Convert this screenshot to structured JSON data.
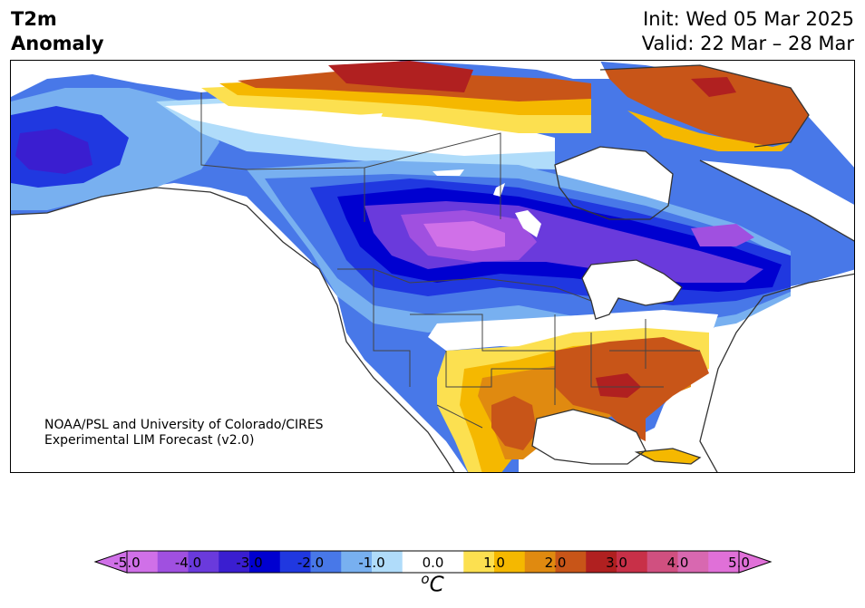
{
  "header": {
    "variable_line1": "T2m",
    "variable_line2": "Anomaly",
    "init": "Init: Wed 05 Mar 2025",
    "valid": "Valid: 22 Mar – 28 Mar"
  },
  "credit": {
    "line1": "NOAA/PSL and University of Colorado/CIRES",
    "line2": "Experimental LIM Forecast (v2.0)"
  },
  "colorbar": {
    "unit_super": "o",
    "unit": "C",
    "ticks": [
      "-5.0",
      "-4.0",
      "-3.0",
      "-2.0",
      "-1.0",
      "0.0",
      "1.0",
      "2.0",
      "3.0",
      "4.0",
      "5.0"
    ],
    "colors": [
      "#d070e8",
      "#a050e0",
      "#6a3adc",
      "#3a1ed0",
      "#0000d0",
      "#2038e0",
      "#4878e8",
      "#78b0f0",
      "#b0dcfa",
      "#ffffff",
      "#ffffff",
      "#fce050",
      "#f5b800",
      "#e08a10",
      "#c85518",
      "#b02020",
      "#c83048",
      "#d05080",
      "#d868b0",
      "#e070d8"
    ],
    "under_color": "#d070e8",
    "over_color": "#e070d8"
  },
  "map": {
    "colors": {
      "deep_purple": "#6a3adc",
      "violet": "#a050e0",
      "pink": "#d070e8",
      "navy": "#0000d0",
      "blue": "#2038e0",
      "mid_blue": "#4878e8",
      "light_blue": "#78b0f0",
      "pale_blue": "#b0dcfa",
      "yellow": "#fce050",
      "gold": "#f5b800",
      "orange": "#e08a10",
      "dark_orange": "#c85518",
      "red": "#b02020",
      "ocean": "#ffffff"
    }
  }
}
